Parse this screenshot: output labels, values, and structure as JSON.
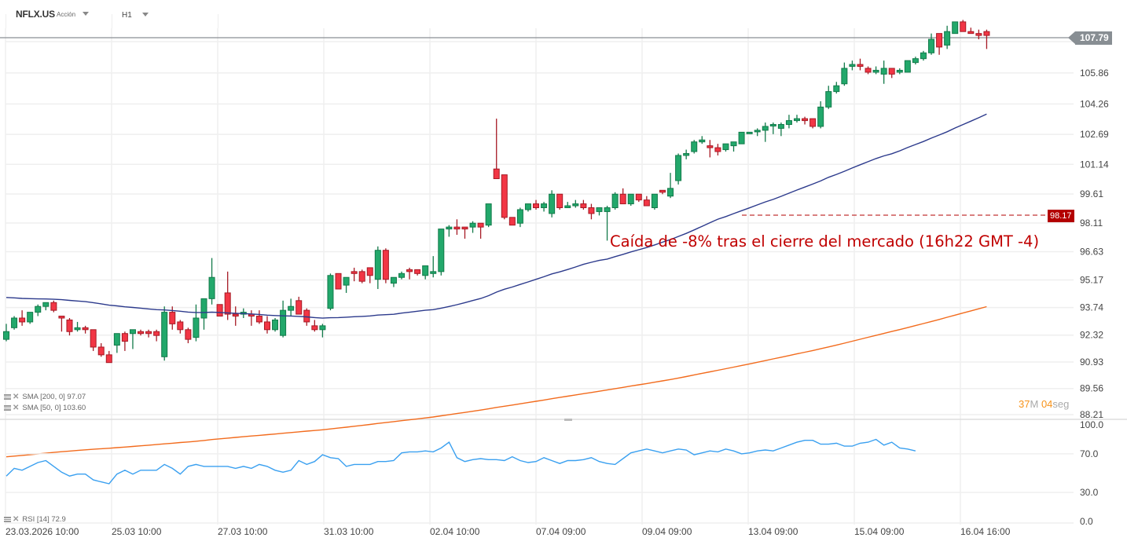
{
  "header": {
    "symbol": "NFLX.US",
    "symbol_type": "Acción",
    "timeframe": "H1"
  },
  "price_panel": {
    "current_price": "107.79",
    "alert_price": "98.17",
    "annotation": "Caída de -8% tras el cierre del mercado (16h22 GMT -4)",
    "countdown": {
      "minutes": "37",
      "minutes_unit": "M",
      "seconds": "04",
      "seconds_unit": "seg"
    },
    "legends": [
      {
        "label": "SMA [200, 0] 97.07",
        "color": "#f26b1d"
      },
      {
        "label": "SMA [50, 0] 103.60",
        "color": "#2c3a8c"
      }
    ]
  },
  "rsi_panel": {
    "legend": "RSI [14] 72.9",
    "color": "#3aa0f0"
  },
  "colors": {
    "up": "#22a86b",
    "up_border": "#137a4a",
    "down": "#f23645",
    "down_border": "#a61a25",
    "sma50": "#2c3a8c",
    "sma200": "#f26b1d",
    "grid": "#efefef",
    "alert": "#b30000"
  },
  "chart_data": [
    {
      "type": "candlestick",
      "title": "NFLX.US H1",
      "y_ticks": [
        "107.48",
        "105.86",
        "104.26",
        "102.69",
        "101.14",
        "99.61",
        "98.11",
        "96.63",
        "95.17",
        "93.74",
        "92.32",
        "90.93",
        "89.56",
        "88.21"
      ],
      "x_ticks": [
        "23.03.2026 10:00",
        "25.03 10:00",
        "27.03 10:00",
        "31.03 10:00",
        "02.04 10:00",
        "07.04 09:00",
        "09.04 09:00",
        "13.04 09:00",
        "15.04 09:00",
        "16.04 16:00"
      ],
      "ylim": [
        88.21,
        108.5
      ],
      "current_price": 107.79,
      "horizontal_line": {
        "value": 98.17,
        "label": "98.17",
        "style": "dashed"
      },
      "annotation": "Caída de -8% tras el cierre del mercado (16h22 GMT -4)",
      "candles_ohlc": [
        [
          92.1,
          92.9,
          92.0,
          92.5
        ],
        [
          92.7,
          93.3,
          92.6,
          93.2
        ],
        [
          93.2,
          93.6,
          92.8,
          93.0
        ],
        [
          93.0,
          93.5,
          92.9,
          93.5
        ],
        [
          93.5,
          93.9,
          93.3,
          93.8
        ],
        [
          93.8,
          93.9,
          93.6,
          94.0
        ],
        [
          94.0,
          94.1,
          93.5,
          93.6
        ],
        [
          93.3,
          93.3,
          92.5,
          93.2
        ],
        [
          93.1,
          93.2,
          92.3,
          92.5
        ],
        [
          92.6,
          93.0,
          92.5,
          92.7
        ],
        [
          92.7,
          92.8,
          92.4,
          92.6
        ],
        [
          92.6,
          92.6,
          91.5,
          91.7
        ],
        [
          91.7,
          91.9,
          91.2,
          91.3
        ],
        [
          91.3,
          91.5,
          90.9,
          90.9
        ],
        [
          91.8,
          92.4,
          91.4,
          92.4
        ],
        [
          92.4,
          92.5,
          91.5,
          92.0
        ],
        [
          92.4,
          92.6,
          91.6,
          92.6
        ],
        [
          92.5,
          92.6,
          92.3,
          92.4
        ],
        [
          92.5,
          92.6,
          92.2,
          92.4
        ],
        [
          92.5,
          92.6,
          92.0,
          92.3
        ],
        [
          91.2,
          93.8,
          91.0,
          93.5
        ],
        [
          93.5,
          93.8,
          92.6,
          92.9
        ],
        [
          93.0,
          93.1,
          92.4,
          92.6
        ],
        [
          92.6,
          92.7,
          91.9,
          92.1
        ],
        [
          92.2,
          93.9,
          92.0,
          93.2
        ],
        [
          93.2,
          93.9,
          92.6,
          94.2
        ],
        [
          94.2,
          96.3,
          93.9,
          95.3
        ],
        [
          93.9,
          93.9,
          93.3,
          93.3
        ],
        [
          94.5,
          95.6,
          93.1,
          93.4
        ],
        [
          93.4,
          93.8,
          92.8,
          93.3
        ],
        [
          93.4,
          93.7,
          93.2,
          93.5
        ],
        [
          93.4,
          93.6,
          92.8,
          93.3
        ],
        [
          93.3,
          93.6,
          92.9,
          93.0
        ],
        [
          93.0,
          93.3,
          92.4,
          92.6
        ],
        [
          92.6,
          93.2,
          92.5,
          93.1
        ],
        [
          92.3,
          94.1,
          92.2,
          93.6
        ],
        [
          93.6,
          94.2,
          93.3,
          93.8
        ],
        [
          94.1,
          94.3,
          93.5,
          93.4
        ],
        [
          93.6,
          93.7,
          92.8,
          93.0
        ],
        [
          92.8,
          93.1,
          92.5,
          92.6
        ],
        [
          92.6,
          92.9,
          92.2,
          92.8
        ],
        [
          93.7,
          95.5,
          93.6,
          95.4
        ],
        [
          95.5,
          95.5,
          94.8,
          94.7
        ],
        [
          94.9,
          95.3,
          94.5,
          95.3
        ],
        [
          95.6,
          95.8,
          95.1,
          95.5
        ],
        [
          95.6,
          95.7,
          95.0,
          95.1
        ],
        [
          95.8,
          95.8,
          95.0,
          95.4
        ],
        [
          95.2,
          96.9,
          94.7,
          96.7
        ],
        [
          96.7,
          96.8,
          95.0,
          95.2
        ],
        [
          95.0,
          95.3,
          94.8,
          95.3
        ],
        [
          95.3,
          95.6,
          95.2,
          95.5
        ],
        [
          95.7,
          95.8,
          95.2,
          95.6
        ],
        [
          95.7,
          95.7,
          95.4,
          95.5
        ],
        [
          95.4,
          95.8,
          95.2,
          95.9
        ],
        [
          95.5,
          96.4,
          95.3,
          95.6
        ],
        [
          95.6,
          97.8,
          95.4,
          97.8
        ],
        [
          97.8,
          98.0,
          97.4,
          97.9
        ],
        [
          97.9,
          98.3,
          97.5,
          97.8
        ],
        [
          97.9,
          97.9,
          97.3,
          97.8
        ],
        [
          97.9,
          98.2,
          97.6,
          98.1
        ],
        [
          98.1,
          98.1,
          97.3,
          97.9
        ],
        [
          98.0,
          99.1,
          97.9,
          99.1
        ],
        [
          100.9,
          103.5,
          100.4,
          100.4
        ],
        [
          100.6,
          100.6,
          98.3,
          98.4
        ],
        [
          98.4,
          98.3,
          98.2,
          98.0
        ],
        [
          98.1,
          98.9,
          97.9,
          98.8
        ],
        [
          98.8,
          99.1,
          98.7,
          99.1
        ],
        [
          99.1,
          99.3,
          98.8,
          98.9
        ],
        [
          98.9,
          99.2,
          98.7,
          99.1
        ],
        [
          98.6,
          99.8,
          98.4,
          99.6
        ],
        [
          99.6,
          99.6,
          98.8,
          98.9
        ],
        [
          98.9,
          99.2,
          98.9,
          99.0
        ],
        [
          99.0,
          99.3,
          98.9,
          99.1
        ],
        [
          99.1,
          99.3,
          98.8,
          98.9
        ],
        [
          98.9,
          99.1,
          98.3,
          98.6
        ],
        [
          98.7,
          98.9,
          98.5,
          98.9
        ],
        [
          98.7,
          99.0,
          97.2,
          98.9
        ],
        [
          98.9,
          99.7,
          98.8,
          99.6
        ],
        [
          99.6,
          99.9,
          99.2,
          99.1
        ],
        [
          99.1,
          99.6,
          99.0,
          99.6
        ],
        [
          99.6,
          99.6,
          99.2,
          99.3
        ],
        [
          99.3,
          99.5,
          99.0,
          99.0
        ],
        [
          98.9,
          99.4,
          98.8,
          99.6
        ],
        [
          99.8,
          99.8,
          99.6,
          99.7
        ],
        [
          99.5,
          100.7,
          99.4,
          99.9
        ],
        [
          100.3,
          101.7,
          100.1,
          101.6
        ],
        [
          101.6,
          101.9,
          101.4,
          101.7
        ],
        [
          101.8,
          102.4,
          101.7,
          102.3
        ],
        [
          102.3,
          102.6,
          102.2,
          102.4
        ],
        [
          102.1,
          102.4,
          101.5,
          102.0
        ],
        [
          102.0,
          102.2,
          101.6,
          101.8
        ],
        [
          101.9,
          102.1,
          101.8,
          102.2
        ],
        [
          102.1,
          102.3,
          101.8,
          102.3
        ],
        [
          102.2,
          102.8,
          102.3,
          102.8
        ],
        [
          102.8,
          102.8,
          102.8,
          102.8
        ],
        [
          102.9,
          103.0,
          102.6,
          102.9
        ],
        [
          102.9,
          103.3,
          102.3,
          103.1
        ],
        [
          103.2,
          103.3,
          102.7,
          103.2
        ],
        [
          103.0,
          103.3,
          102.6,
          103.2
        ],
        [
          103.2,
          103.7,
          103.0,
          103.4
        ],
        [
          103.4,
          103.7,
          103.3,
          103.5
        ],
        [
          103.5,
          103.6,
          103.2,
          103.4
        ],
        [
          103.5,
          103.5,
          103.0,
          103.1
        ],
        [
          103.1,
          104.4,
          103.0,
          104.1
        ],
        [
          104.1,
          105.2,
          104.0,
          104.9
        ],
        [
          104.9,
          105.4,
          104.8,
          105.2
        ],
        [
          105.3,
          106.4,
          105.2,
          106.1
        ],
        [
          106.2,
          106.5,
          106.0,
          106.3
        ],
        [
          106.3,
          106.6,
          106.0,
          106.2
        ],
        [
          106.1,
          106.2,
          105.8,
          105.9
        ],
        [
          105.9,
          106.2,
          105.8,
          106.0
        ],
        [
          105.8,
          106.5,
          105.3,
          106.1
        ],
        [
          106.1,
          106.1,
          105.6,
          105.8
        ],
        [
          105.9,
          106.1,
          105.8,
          106.0
        ],
        [
          105.9,
          106.5,
          105.9,
          106.5
        ],
        [
          106.4,
          106.7,
          106.3,
          106.6
        ],
        [
          106.6,
          107.0,
          106.5,
          106.9
        ],
        [
          106.9,
          107.9,
          106.8,
          107.6
        ],
        [
          107.9,
          107.9,
          106.8,
          107.2
        ],
        [
          107.3,
          108.3,
          107.1,
          108.0
        ],
        [
          107.9,
          108.5,
          107.9,
          108.5
        ],
        [
          108.5,
          108.6,
          108.0,
          108.0
        ],
        [
          108.0,
          108.2,
          107.9,
          107.9
        ],
        [
          107.9,
          108.1,
          107.6,
          107.8
        ],
        [
          108.0,
          108.1,
          107.1,
          107.8
        ]
      ],
      "series": [
        {
          "name": "SMA [50, 0]",
          "color": "#2c3a8c",
          "last": 103.6
        },
        {
          "name": "SMA [200, 0]",
          "color": "#f26b1d",
          "last": 97.07
        }
      ]
    },
    {
      "type": "line",
      "title": "RSI [14] 72.9",
      "y_ticks": [
        "100.0",
        "70.0",
        "30.0",
        "0.0"
      ],
      "ylim": [
        0,
        100
      ],
      "values": [
        47,
        55,
        53,
        57,
        61,
        63,
        57,
        51,
        47,
        49,
        49,
        43,
        41,
        39,
        49,
        53,
        49,
        53,
        53,
        53,
        59,
        55,
        49,
        57,
        59,
        57,
        57,
        57,
        57,
        55,
        57,
        55,
        59,
        57,
        53,
        51,
        53,
        63,
        59,
        62,
        69,
        66,
        65,
        57,
        59,
        59,
        59,
        62,
        62,
        63,
        71,
        72,
        72,
        73,
        72,
        76,
        82,
        66,
        62,
        64,
        65,
        64,
        64,
        63,
        67,
        63,
        61,
        62,
        66,
        63,
        60,
        63,
        63,
        64,
        66,
        62,
        60,
        59,
        65,
        71,
        73,
        75,
        73,
        71,
        73,
        75,
        74,
        69,
        71,
        73,
        72,
        75,
        73,
        70,
        71,
        73,
        74,
        73,
        76,
        79,
        82,
        84,
        84,
        80,
        80,
        81,
        78,
        78,
        81,
        82,
        85,
        79,
        82,
        76,
        75,
        73
      ],
      "color": "#3aa0f0"
    }
  ]
}
